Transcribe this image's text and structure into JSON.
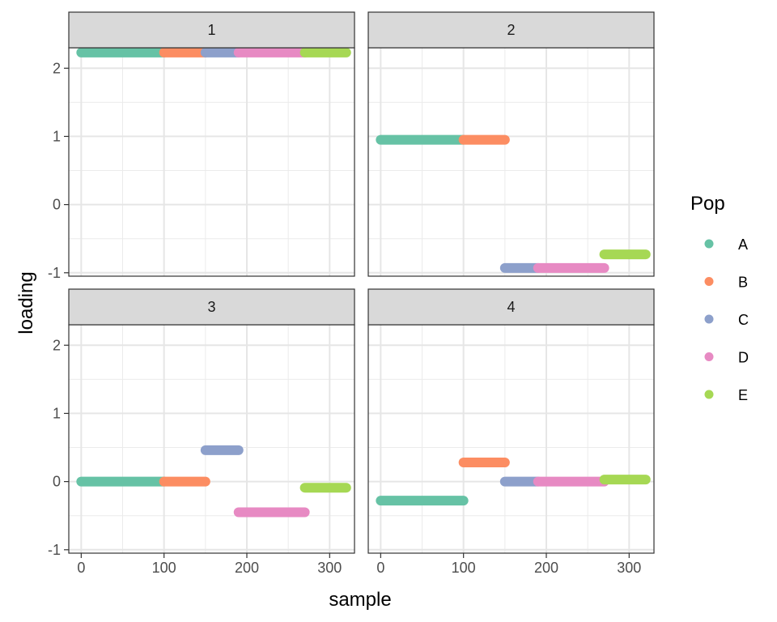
{
  "chart_data": {
    "type": "scatter",
    "xlabel": "sample",
    "ylabel": "loading",
    "xlim": [
      -15,
      330
    ],
    "ylim": [
      -1.05,
      2.3
    ],
    "x_ticks": [
      0,
      100,
      200,
      300
    ],
    "y_ticks": [
      -1,
      0,
      1,
      2
    ],
    "grid": true,
    "facet_layout": "2x2",
    "legend": {
      "title": "Pop",
      "position": "right",
      "entries": [
        {
          "name": "A",
          "color": "#66C2A5"
        },
        {
          "name": "B",
          "color": "#FC8D62"
        },
        {
          "name": "C",
          "color": "#8DA0CB"
        },
        {
          "name": "D",
          "color": "#E78AC3"
        },
        {
          "name": "E",
          "color": "#A6D854"
        }
      ]
    },
    "facets": [
      {
        "strip": "1",
        "series": [
          {
            "name": "A",
            "x_range": [
              0,
              100
            ],
            "y": 2.23
          },
          {
            "name": "B",
            "x_range": [
              100,
              150
            ],
            "y": 2.23
          },
          {
            "name": "C",
            "x_range": [
              150,
              190
            ],
            "y": 2.23
          },
          {
            "name": "D",
            "x_range": [
              190,
              270
            ],
            "y": 2.23
          },
          {
            "name": "E",
            "x_range": [
              270,
              320
            ],
            "y": 2.23
          }
        ]
      },
      {
        "strip": "2",
        "series": [
          {
            "name": "A",
            "x_range": [
              0,
              100
            ],
            "y": 0.95
          },
          {
            "name": "B",
            "x_range": [
              100,
              150
            ],
            "y": 0.95
          },
          {
            "name": "C",
            "x_range": [
              150,
              190
            ],
            "y": -0.93
          },
          {
            "name": "D",
            "x_range": [
              190,
              270
            ],
            "y": -0.93
          },
          {
            "name": "E",
            "x_range": [
              270,
              320
            ],
            "y": -0.73
          }
        ]
      },
      {
        "strip": "3",
        "series": [
          {
            "name": "A",
            "x_range": [
              0,
              100
            ],
            "y": 0.0
          },
          {
            "name": "B",
            "x_range": [
              100,
              150
            ],
            "y": 0.0
          },
          {
            "name": "C",
            "x_range": [
              150,
              190
            ],
            "y": 0.46
          },
          {
            "name": "D",
            "x_range": [
              190,
              270
            ],
            "y": -0.45
          },
          {
            "name": "E",
            "x_range": [
              270,
              320
            ],
            "y": -0.09
          }
        ]
      },
      {
        "strip": "4",
        "series": [
          {
            "name": "A",
            "x_range": [
              0,
              100
            ],
            "y": -0.28
          },
          {
            "name": "B",
            "x_range": [
              100,
              150
            ],
            "y": 0.28
          },
          {
            "name": "C",
            "x_range": [
              150,
              190
            ],
            "y": 0.0
          },
          {
            "name": "D",
            "x_range": [
              190,
              270
            ],
            "y": 0.0
          },
          {
            "name": "E",
            "x_range": [
              270,
              320
            ],
            "y": 0.03
          }
        ]
      }
    ]
  }
}
